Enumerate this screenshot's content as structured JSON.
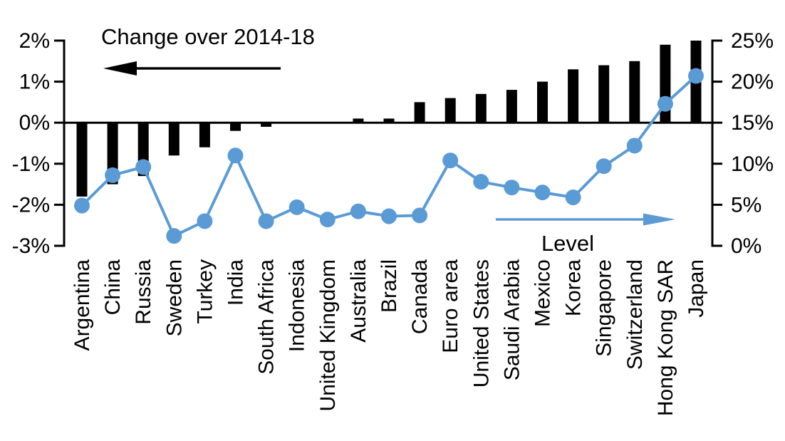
{
  "chart_data": {
    "type": "bar",
    "subtype": "combo-bar-line-dual-axis",
    "title": "",
    "categories": [
      "Argentina",
      "China",
      "Russia",
      "Sweden",
      "Turkey",
      "India",
      "South Africa",
      "Indonesia",
      "United Kingdom",
      "Australia",
      "Brazil",
      "Canada",
      "Euro area",
      "United States",
      "Saudi Arabia",
      "Mexico",
      "Korea",
      "Singapore",
      "Switzerland",
      "Hong Kong SAR",
      "Japan"
    ],
    "series": [
      {
        "name": "Change over 2014-18",
        "type": "bar",
        "axis": "left",
        "color": "#000000",
        "values": [
          -1.8,
          -1.5,
          -1.3,
          -0.8,
          -0.6,
          -0.2,
          -0.1,
          0,
          0,
          0.1,
          0.1,
          0.5,
          0.6,
          0.7,
          0.8,
          1.0,
          1.3,
          1.4,
          1.5,
          1.9,
          2.0
        ]
      },
      {
        "name": "Level",
        "type": "line",
        "axis": "right",
        "color": "#5B9BD5",
        "marker": "circle",
        "values": [
          4.9,
          8.6,
          9.6,
          1.2,
          3.0,
          11.0,
          3.0,
          4.7,
          3.2,
          4.2,
          3.6,
          3.7,
          10.4,
          7.8,
          7.1,
          6.5,
          5.9,
          9.7,
          12.2,
          17.3,
          20.7
        ]
      }
    ],
    "left_axis": {
      "tick_labels": [
        "2%",
        "1%",
        "0%",
        "-1%",
        "-2%",
        "-3%"
      ],
      "tick_values": [
        2,
        1,
        0,
        -1,
        -2,
        -3
      ],
      "range": [
        -3,
        2
      ]
    },
    "right_axis": {
      "tick_labels": [
        "25%",
        "20%",
        "15%",
        "10%",
        "5%",
        "0%"
      ],
      "tick_values": [
        25,
        20,
        15,
        10,
        5,
        0
      ],
      "range": [
        0,
        25
      ]
    },
    "annotations": {
      "left": {
        "label": "Change over 2014-18",
        "arrow_direction": "left",
        "color": "#000000"
      },
      "right": {
        "label": "Level",
        "arrow_direction": "right",
        "color": "#5B9BD5"
      }
    },
    "grid": false,
    "legend_position": "none"
  },
  "colors": {
    "bar": "#000000",
    "line": "#5B9BD5",
    "background": "#ffffff",
    "text": "#000000"
  }
}
